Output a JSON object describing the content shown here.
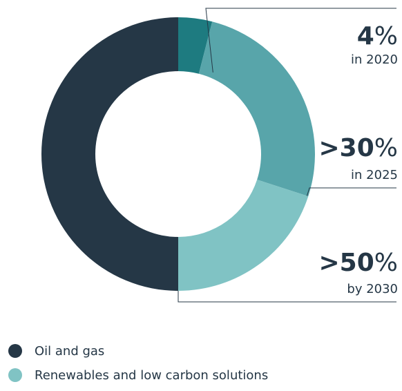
{
  "chart_data": {
    "type": "pie",
    "title": "",
    "donut": true,
    "colors": {
      "oil_and_gas": "#253746",
      "slice_2020": "#1e7b80",
      "slice_2025": "#58a5aa",
      "slice_2030": "#80c3c4",
      "leader_line": "#253746"
    },
    "slices": [
      {
        "value": 4,
        "color_key": "slice_2020"
      },
      {
        "value": 26,
        "color_key": "slice_2025"
      },
      {
        "value": 20,
        "color_key": "slice_2030"
      },
      {
        "value": 50,
        "color_key": "oil_and_gas"
      }
    ],
    "annotations": [
      {
        "slice": 0,
        "value": "4",
        "prefix": "",
        "unit": "%",
        "caption": "in 2020"
      },
      {
        "slice": 1,
        "value": "30",
        "prefix": ">",
        "unit": "%",
        "caption": "in 2025"
      },
      {
        "slice": 2,
        "value": "50",
        "prefix": ">",
        "unit": "%",
        "caption": "by 2030"
      }
    ],
    "legend": [
      {
        "label": "Oil and gas",
        "color": "#253746"
      },
      {
        "label": "Renewables and low carbon solutions",
        "color": "#80c3c4"
      }
    ]
  }
}
